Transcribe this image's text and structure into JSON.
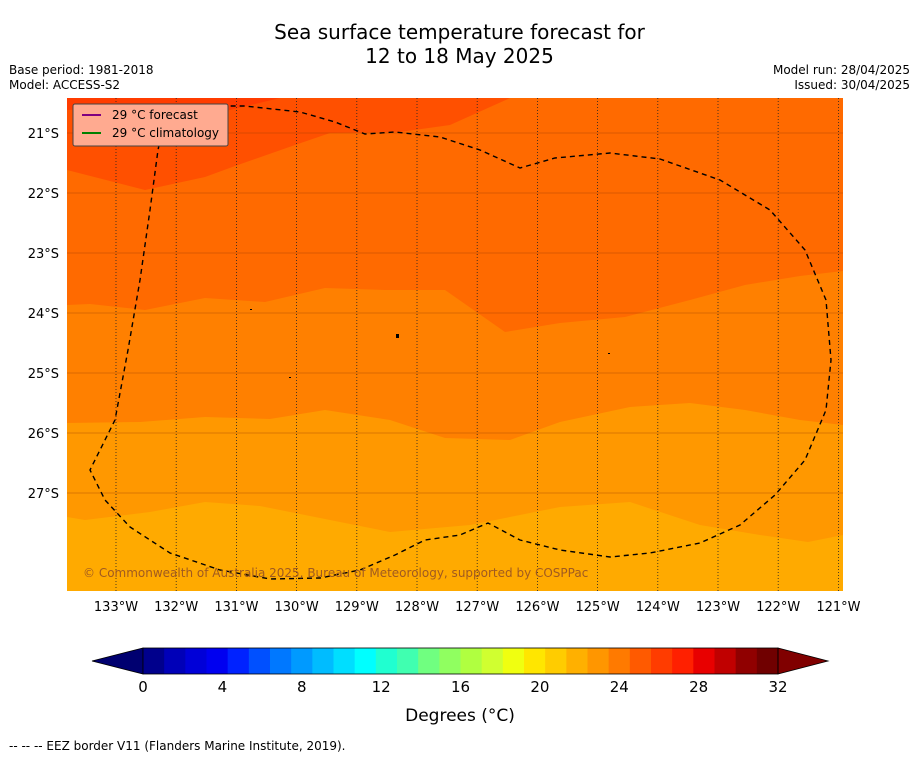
{
  "title_line1": "Sea surface temperature forecast for",
  "title_line2": "12 to 18 May 2025",
  "meta_left": {
    "base_period": "Base period: 1981-2018",
    "model": "Model: ACCESS-S2"
  },
  "meta_right": {
    "model_run": "Model run: 28/04/2025",
    "issued": "Issued: 30/04/2025"
  },
  "legend": {
    "forecast": "29 °C  forecast",
    "climatology": "29 °C  climatology",
    "forecast_color": "#800080",
    "climatology_color": "#008000"
  },
  "lat_labels": [
    "21°S",
    "22°S",
    "23°S",
    "24°S",
    "25°S",
    "26°S",
    "27°S"
  ],
  "lon_labels": [
    "133°W",
    "132°W",
    "131°W",
    "130°W",
    "129°W",
    "128°W",
    "127°W",
    "126°W",
    "125°W",
    "124°W",
    "123°W",
    "122°W",
    "121°W"
  ],
  "copyright": "© Commonwealth of Australia 2025, Bureau of Meteorology, supported by COSPPac",
  "colorbar": {
    "ticks": [
      "0",
      "4",
      "8",
      "12",
      "16",
      "20",
      "24",
      "28",
      "32"
    ],
    "label": "Degrees (°C)",
    "colors": [
      "#00008c",
      "#0000b8",
      "#0000d8",
      "#0000f0",
      "#0022ff",
      "#0050ff",
      "#0078ff",
      "#009aff",
      "#00bcff",
      "#00deff",
      "#00ffff",
      "#20ffd0",
      "#40ffb0",
      "#70ff80",
      "#90ff60",
      "#b0ff40",
      "#d0ff30",
      "#f0ff10",
      "#ffe600",
      "#ffcc00",
      "#ffb000",
      "#ff9600",
      "#ff7a00",
      "#ff5a00",
      "#ff3c00",
      "#ff2000",
      "#e80000",
      "#c00000",
      "#900000",
      "#700000"
    ],
    "under_color": "#000070",
    "over_color": "#800000"
  },
  "map_colors": [
    "#ff3800",
    "#ff5000",
    "#ff6a00",
    "#ff8000",
    "#ff9800",
    "#ffaa00"
  ],
  "footer": "--  --  -- EEZ border V11 (Flanders Marine Institute, 2019)."
}
